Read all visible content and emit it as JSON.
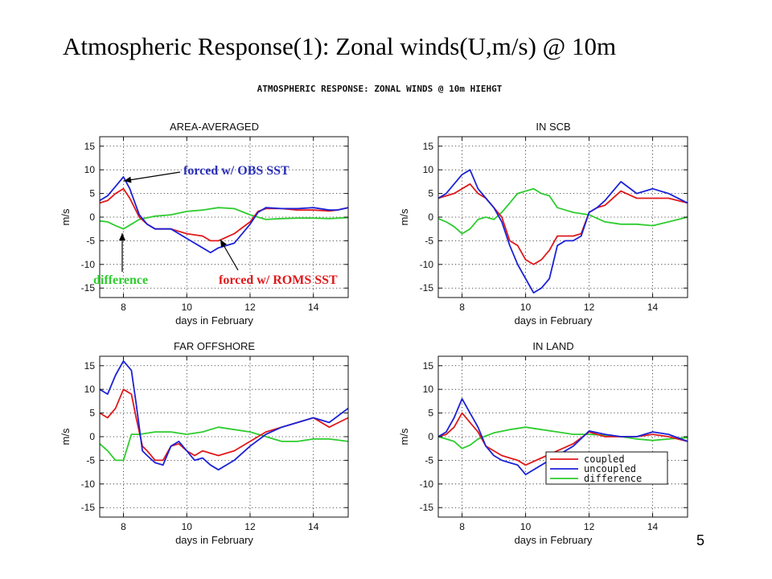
{
  "slide": {
    "title": "Atmospheric Response(1): Zonal winds(U,m/s) @ 10m",
    "page_number": "5"
  },
  "figure": {
    "title": "ATMOSPHERIC RESPONSE: ZONAL WINDS @ 10m HIEHGT"
  },
  "colors": {
    "coupled": "#e0191b",
    "uncoupled": "#1c22d6",
    "difference": "#2ecc2e",
    "annot_obs": "#2a2fb8",
    "annot_roms": "#e0191b",
    "annot_diff": "#2ecc2e"
  },
  "annotations": {
    "obs": "forced w/ OBS SST",
    "roms": "forced w/ ROMS SST",
    "diff": "difference"
  },
  "chart_data": [
    {
      "type": "line",
      "title": "AREA-AVERAGED",
      "xlabel": "days in February",
      "ylabel": "m/s",
      "xlim": [
        7.25,
        15.1
      ],
      "ylim": [
        -17,
        17
      ],
      "xticks": [
        8,
        10,
        12,
        14
      ],
      "yticks": [
        15,
        10,
        5,
        0,
        -5,
        -10,
        -15
      ],
      "grid": true,
      "series": [
        {
          "name": "coupled",
          "x": [
            7.25,
            7.5,
            7.75,
            8,
            8.2,
            8.5,
            8.75,
            9,
            9.5,
            10,
            10.5,
            10.75,
            11,
            11.5,
            12,
            12.25,
            12.5,
            13,
            13.5,
            14,
            14.5,
            14.75,
            15.1
          ],
          "values": [
            3,
            3.5,
            5,
            6,
            4,
            0,
            -1.5,
            -2.5,
            -2.5,
            -3.5,
            -4,
            -5,
            -5,
            -3.5,
            -1,
            1.2,
            1.8,
            1.8,
            1.5,
            1.5,
            1.3,
            1.5,
            2
          ]
        },
        {
          "name": "uncoupled",
          "x": [
            7.25,
            7.5,
            7.75,
            8,
            8.2,
            8.5,
            8.75,
            9,
            9.5,
            10,
            10.5,
            10.75,
            11,
            11.5,
            12,
            12.25,
            12.5,
            13,
            13.5,
            14,
            14.5,
            14.75,
            15.1
          ],
          "values": [
            3.5,
            4.5,
            6.5,
            8.5,
            6,
            0.5,
            -1.5,
            -2.5,
            -2.5,
            -4.5,
            -6.5,
            -7.5,
            -6.5,
            -5.5,
            -1.5,
            1,
            2,
            1.8,
            1.8,
            2,
            1.5,
            1.5,
            2
          ]
        },
        {
          "name": "difference",
          "x": [
            7.25,
            7.5,
            7.75,
            8,
            8.25,
            8.5,
            9,
            9.5,
            10,
            10.5,
            11,
            11.5,
            12,
            12.5,
            13,
            13.5,
            14,
            14.5,
            15.1
          ],
          "values": [
            -0.8,
            -1,
            -1.8,
            -2.5,
            -1.5,
            -0.5,
            0.2,
            0.5,
            1.2,
            1.5,
            2,
            1.8,
            0.5,
            -0.5,
            -0.3,
            -0.2,
            -0.2,
            -0.3,
            -0.1
          ]
        }
      ]
    },
    {
      "type": "line",
      "title": "IN SCB",
      "xlabel": "days in February",
      "ylabel": "m/s",
      "xlim": [
        7.25,
        15.1
      ],
      "ylim": [
        -17,
        17
      ],
      "xticks": [
        8,
        10,
        12,
        14
      ],
      "yticks": [
        15,
        10,
        5,
        0,
        -5,
        -10,
        -15
      ],
      "grid": true,
      "series": [
        {
          "name": "coupled",
          "x": [
            7.25,
            7.5,
            7.75,
            8,
            8.25,
            8.5,
            8.75,
            9,
            9.25,
            9.5,
            9.75,
            10,
            10.25,
            10.5,
            10.75,
            11,
            11.25,
            11.5,
            11.75,
            12,
            12.25,
            12.5,
            13,
            13.5,
            14,
            14.5,
            15.1
          ],
          "values": [
            4,
            4.5,
            5,
            6,
            7,
            5,
            4,
            2,
            0,
            -5,
            -6,
            -9,
            -10,
            -9,
            -7,
            -4,
            -4,
            -4,
            -3.5,
            1,
            2,
            2.5,
            5.5,
            4,
            4,
            4,
            3
          ]
        },
        {
          "name": "uncoupled",
          "x": [
            7.25,
            7.5,
            7.75,
            8,
            8.25,
            8.5,
            8.75,
            9,
            9.25,
            9.5,
            9.75,
            10,
            10.25,
            10.5,
            10.75,
            11,
            11.25,
            11.5,
            11.75,
            12,
            12.25,
            12.5,
            13,
            13.5,
            14,
            14.5,
            15.1
          ],
          "values": [
            4,
            5,
            7,
            9,
            10,
            6,
            4,
            2,
            -1,
            -6,
            -10,
            -13,
            -16,
            -15,
            -13,
            -6,
            -5,
            -5,
            -4,
            1,
            2,
            3.5,
            7.5,
            5,
            6,
            5,
            3
          ]
        },
        {
          "name": "difference",
          "x": [
            7.25,
            7.5,
            7.75,
            8,
            8.25,
            8.5,
            8.75,
            9,
            9.25,
            9.5,
            9.75,
            10,
            10.25,
            10.5,
            10.75,
            11,
            11.25,
            11.5,
            12,
            12.5,
            13,
            13.5,
            14,
            14.5,
            15.1
          ],
          "values": [
            -0.3,
            -1,
            -2,
            -3.5,
            -2.5,
            -0.5,
            0,
            -0.5,
            1,
            3,
            5,
            5.5,
            6,
            5,
            4.5,
            2,
            1.5,
            1,
            0.5,
            -1,
            -1.5,
            -1.5,
            -1.8,
            -1,
            0
          ]
        }
      ]
    },
    {
      "type": "line",
      "title": "FAR OFFSHORE",
      "xlabel": "days in February",
      "ylabel": "m/s",
      "xlim": [
        7.25,
        15.1
      ],
      "ylim": [
        -17,
        17
      ],
      "xticks": [
        8,
        10,
        12,
        14
      ],
      "yticks": [
        15,
        10,
        5,
        0,
        -5,
        -10,
        -15
      ],
      "grid": true,
      "series": [
        {
          "name": "coupled",
          "x": [
            7.25,
            7.5,
            7.75,
            8,
            8.25,
            8.4,
            8.6,
            8.75,
            9,
            9.25,
            9.5,
            9.75,
            10,
            10.25,
            10.5,
            10.75,
            11,
            11.5,
            12,
            12.5,
            13,
            13.5,
            14,
            14.5,
            15.1
          ],
          "values": [
            5,
            4,
            6,
            10,
            9,
            4,
            -2,
            -3,
            -5,
            -5,
            -2,
            -1.5,
            -3,
            -4,
            -3,
            -3.5,
            -4,
            -3,
            -1,
            1,
            2,
            3,
            4,
            2,
            4
          ]
        },
        {
          "name": "uncoupled",
          "x": [
            7.25,
            7.5,
            7.75,
            8,
            8.25,
            8.4,
            8.6,
            8.75,
            9,
            9.25,
            9.5,
            9.75,
            10,
            10.25,
            10.5,
            10.75,
            11,
            11.5,
            12,
            12.5,
            13,
            13.5,
            14,
            14.5,
            15.1
          ],
          "values": [
            10,
            9,
            13,
            16,
            14,
            7,
            -3,
            -4,
            -5.5,
            -6,
            -2,
            -1,
            -3,
            -5,
            -4.5,
            -6,
            -7,
            -5,
            -2,
            0.5,
            2,
            3,
            4,
            3,
            6
          ]
        },
        {
          "name": "difference",
          "x": [
            7.25,
            7.5,
            7.75,
            8,
            8.25,
            8.5,
            9,
            9.5,
            10,
            10.5,
            11,
            11.5,
            12,
            12.5,
            13,
            13.5,
            14,
            14.5,
            15.1
          ],
          "values": [
            -1.5,
            -3,
            -5,
            -5,
            0.5,
            0.5,
            1,
            1,
            0.5,
            1,
            2,
            1.5,
            1,
            0,
            -1,
            -1,
            -0.5,
            -0.5,
            -1
          ]
        }
      ]
    },
    {
      "type": "line",
      "title": "IN LAND",
      "xlabel": "days in February",
      "ylabel": "m/s",
      "xlim": [
        7.25,
        15.1
      ],
      "ylim": [
        -17,
        17
      ],
      "xticks": [
        8,
        10,
        12,
        14
      ],
      "yticks": [
        15,
        10,
        5,
        0,
        -5,
        -10,
        -15
      ],
      "grid": true,
      "legend": {
        "position": "lower-right",
        "entries": [
          "coupled",
          "uncoupled",
          "difference"
        ]
      },
      "series": [
        {
          "name": "coupled",
          "x": [
            7.25,
            7.5,
            7.75,
            8,
            8.25,
            8.5,
            8.75,
            9,
            9.25,
            9.5,
            9.75,
            10,
            10.5,
            11,
            11.5,
            12,
            12.5,
            13,
            13.5,
            14,
            14.5,
            15.1
          ],
          "values": [
            0,
            0.5,
            2,
            5,
            3,
            1,
            -2,
            -3,
            -4,
            -4.5,
            -5,
            -6,
            -4.5,
            -3,
            -1.5,
            1,
            0,
            0,
            0,
            0.5,
            0,
            -1
          ]
        },
        {
          "name": "uncoupled",
          "x": [
            7.25,
            7.5,
            7.75,
            8,
            8.25,
            8.5,
            8.75,
            9,
            9.25,
            9.5,
            9.75,
            10,
            10.5,
            11,
            11.5,
            12,
            12.5,
            13,
            13.5,
            14,
            14.5,
            15.1
          ],
          "values": [
            0,
            1,
            4,
            8,
            5,
            2,
            -2,
            -4,
            -5,
            -5.5,
            -6,
            -8,
            -6,
            -4,
            -2,
            1.2,
            0.5,
            0,
            0,
            1,
            0.5,
            -1
          ]
        },
        {
          "name": "difference",
          "x": [
            7.25,
            7.5,
            7.75,
            8,
            8.25,
            8.5,
            9,
            9.5,
            10,
            10.5,
            11,
            11.5,
            12,
            12.5,
            13,
            13.5,
            14,
            14.5,
            15.1
          ],
          "values": [
            0,
            -0.5,
            -1,
            -2.5,
            -1.8,
            -0.5,
            0.8,
            1.5,
            2,
            1.5,
            1,
            0.5,
            0.5,
            0.3,
            0,
            -0.5,
            -0.8,
            -0.5,
            -0.2
          ]
        }
      ]
    }
  ]
}
